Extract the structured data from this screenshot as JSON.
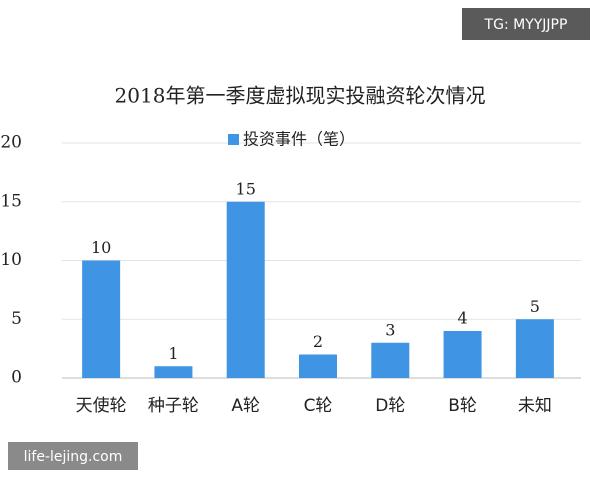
{
  "chart_data": {
    "type": "bar",
    "title": "2018年第一季度虚拟现实投融资轮次情况",
    "categories": [
      "天使轮",
      "种子轮",
      "A轮",
      "C轮",
      "D轮",
      "B轮",
      "未知"
    ],
    "series": [
      {
        "name": "投资事件（笔）",
        "color": "#3f94e4",
        "values": [
          10,
          1,
          15,
          2,
          3,
          4,
          5
        ]
      }
    ],
    "ylim": [
      0,
      20
    ],
    "yticks": [
      0,
      5,
      10,
      15,
      20
    ],
    "grid": true,
    "data_labels": true
  },
  "overlay_texts": [
    "TG: MYYJJPP",
    "life-lejing.com"
  ]
}
